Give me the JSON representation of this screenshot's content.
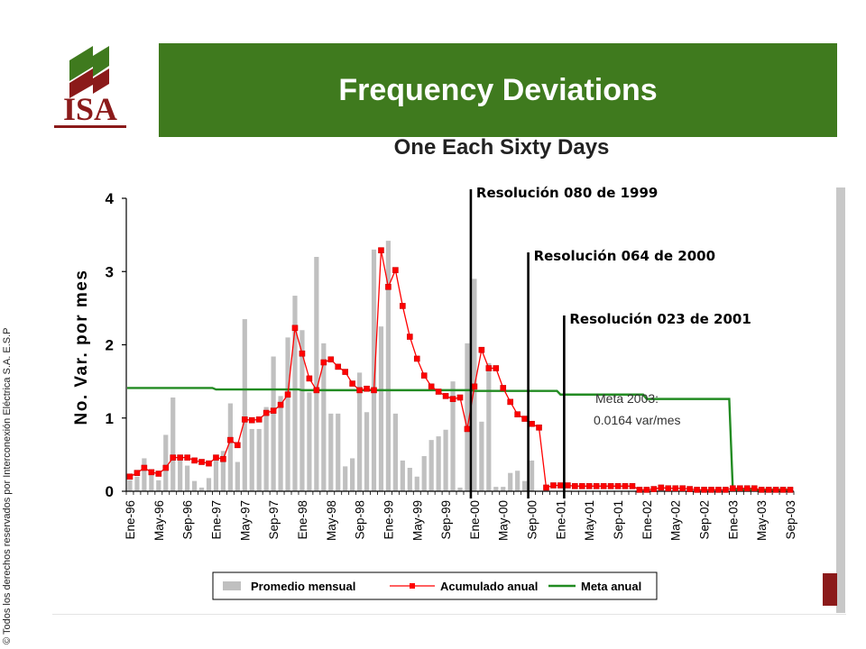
{
  "header": {
    "logo_text": "ISA",
    "title": "Frequency Deviations",
    "subtitle": "One Each Sixty Days",
    "copyright": "© Todos los derechos reservados por Interconexión Eléctrica S.A. E.S.P",
    "colors": {
      "title_bar": "#3f7a1e",
      "logo_red": "#8b1a1a",
      "logo_green": "#3f7a1e"
    }
  },
  "chart_data": {
    "type": "bar",
    "categories": [
      "Ene-96",
      "Feb-96",
      "Mar-96",
      "Abr-96",
      "May-96",
      "Jun-96",
      "Jul-96",
      "Ago-96",
      "Sep-96",
      "Oct-96",
      "Nov-96",
      "Dic-96",
      "Ene-97",
      "Feb-97",
      "Mar-97",
      "Abr-97",
      "May-97",
      "Jun-97",
      "Jul-97",
      "Ago-97",
      "Sep-97",
      "Oct-97",
      "Nov-97",
      "Dic-97",
      "Ene-98",
      "Feb-98",
      "Mar-98",
      "Abr-98",
      "May-98",
      "Jun-98",
      "Jul-98",
      "Ago-98",
      "Sep-98",
      "Oct-98",
      "Nov-98",
      "Dic-98",
      "Ene-99",
      "Feb-99",
      "Mar-99",
      "Abr-99",
      "May-99",
      "Jun-99",
      "Jul-99",
      "Ago-99",
      "Sep-99",
      "Oct-99",
      "Nov-99",
      "Dic-99",
      "Ene-00",
      "Feb-00",
      "Mar-00",
      "Abr-00",
      "May-00",
      "Jun-00",
      "Jul-00",
      "Ago-00",
      "Sep-00",
      "Oct-00",
      "Nov-00",
      "Dic-00",
      "Ene-01",
      "Feb-01",
      "Mar-01",
      "Abr-01",
      "May-01",
      "Jun-01",
      "Jul-01",
      "Ago-01",
      "Sep-01",
      "Oct-01",
      "Nov-01",
      "Dic-01",
      "Ene-02",
      "Feb-02",
      "Mar-02",
      "Abr-02",
      "May-02",
      "Jun-02",
      "Jul-02",
      "Ago-02",
      "Sep-02",
      "Oct-02",
      "Nov-02",
      "Dic-02",
      "Ene-03",
      "Feb-03",
      "Mar-03",
      "Abr-03",
      "May-03",
      "Jun-03",
      "Jul-03",
      "Ago-03",
      "Sep-03"
    ],
    "tick_labels": [
      "Ene-96",
      "May-96",
      "Sep-96",
      "Ene-97",
      "May-97",
      "Sep-97",
      "Ene-98",
      "May-98",
      "Sep-98",
      "Ene-99",
      "May-99",
      "Sep-99",
      "Ene-00",
      "May-00",
      "Sep-00",
      "Ene-01",
      "May-01",
      "Sep-01",
      "Ene-02",
      "May-02",
      "Sep-02",
      "Ene-03",
      "May-03",
      "Sep-03"
    ],
    "series": [
      {
        "name": "Promedio mensual",
        "kind": "bar",
        "color": "#c0c0c0",
        "values": [
          0.15,
          0.2,
          0.45,
          0.22,
          0.15,
          0.77,
          1.28,
          0.5,
          0.35,
          0.14,
          0.05,
          0.18,
          0.42,
          0.55,
          1.2,
          0.4,
          2.35,
          0.85,
          0.85,
          1.15,
          1.84,
          1.3,
          2.1,
          2.67,
          2.2,
          1.35,
          3.2,
          2.02,
          1.06,
          1.06,
          0.34,
          0.45,
          1.62,
          1.08,
          3.3,
          2.25,
          3.42,
          1.06,
          0.42,
          0.32,
          0.2,
          0.48,
          0.7,
          0.75,
          0.84,
          1.5,
          0.05,
          2.02,
          2.9,
          0.95,
          1.75,
          0.06,
          0.06,
          0.25,
          0.28,
          0.14,
          0.42,
          0.0,
          0.02,
          0.0,
          0.0,
          0.0,
          0.0,
          0.0,
          0.0,
          0.0,
          0.0,
          0.0,
          0.0,
          0.0,
          0.0,
          0.0,
          0.0,
          0.0,
          0.0,
          0.0,
          0.0,
          0.0,
          0.0,
          0.0,
          0.0,
          0.0,
          0.0,
          0.0,
          0.0,
          0.0,
          0.0,
          0.0,
          0.0,
          0.0,
          0.0,
          0.0,
          0.0
        ]
      },
      {
        "name": "Acumulado anual",
        "kind": "line-marker",
        "color": "#ff0000",
        "values": [
          0.2,
          0.25,
          0.32,
          0.26,
          0.24,
          0.32,
          0.46,
          0.46,
          0.46,
          0.42,
          0.4,
          0.38,
          0.46,
          0.44,
          0.7,
          0.63,
          0.98,
          0.97,
          0.98,
          1.07,
          1.1,
          1.18,
          1.32,
          2.23,
          1.88,
          1.54,
          1.38,
          1.76,
          1.8,
          1.7,
          1.63,
          1.47,
          1.38,
          1.4,
          1.38,
          3.29,
          2.79,
          3.02,
          2.53,
          2.11,
          1.81,
          1.58,
          1.43,
          1.36,
          1.3,
          1.26,
          1.28,
          0.85,
          1.43,
          1.93,
          1.68,
          1.68,
          1.41,
          1.22,
          1.05,
          0.99,
          0.92,
          0.87,
          0.05,
          0.08,
          0.08,
          0.08,
          0.07,
          0.07,
          0.07,
          0.07,
          0.07,
          0.07,
          0.07,
          0.07,
          0.07,
          0.02,
          0.02,
          0.03,
          0.05,
          0.04,
          0.04,
          0.04,
          0.03,
          0.02,
          0.02,
          0.02,
          0.02,
          0.02,
          0.04,
          0.04,
          0.04,
          0.04,
          0.02,
          0.02,
          0.02,
          0.02,
          0.02
        ]
      },
      {
        "name": "Meta anual",
        "kind": "step",
        "color": "#228b22",
        "values": [
          1.41,
          1.41,
          1.41,
          1.41,
          1.41,
          1.41,
          1.41,
          1.41,
          1.41,
          1.41,
          1.41,
          1.41,
          1.39,
          1.39,
          1.39,
          1.39,
          1.39,
          1.39,
          1.39,
          1.39,
          1.39,
          1.39,
          1.39,
          1.39,
          1.38,
          1.38,
          1.38,
          1.38,
          1.38,
          1.38,
          1.38,
          1.38,
          1.38,
          1.38,
          1.38,
          1.38,
          1.38,
          1.38,
          1.38,
          1.38,
          1.38,
          1.38,
          1.38,
          1.38,
          1.38,
          1.38,
          1.38,
          1.38,
          1.37,
          1.37,
          1.37,
          1.37,
          1.37,
          1.37,
          1.37,
          1.37,
          1.37,
          1.37,
          1.37,
          1.37,
          1.32,
          1.32,
          1.32,
          1.32,
          1.32,
          1.32,
          1.32,
          1.32,
          1.32,
          1.32,
          1.32,
          1.32,
          1.26,
          1.26,
          1.26,
          1.26,
          1.26,
          1.26,
          1.26,
          1.26,
          1.26,
          1.26,
          1.26,
          1.26,
          0.02,
          0.02,
          0.02,
          0.02,
          0.02,
          0.02,
          0.02,
          0.02,
          0.02
        ]
      }
    ],
    "ylabel": "No. Var. por mes",
    "ylim": [
      0,
      4
    ],
    "yticks": [
      "0",
      "1",
      "2",
      "3",
      "4"
    ],
    "grid": false,
    "legend_position": "bottom",
    "annotations": [
      {
        "text": "Resolución 080 de 1999",
        "at": "Ene-00"
      },
      {
        "text": "Resolución 064 de 2000",
        "at": "Sep-00"
      },
      {
        "text": "Resolución 023 de 2001",
        "at": "Feb-01"
      }
    ],
    "meta_label": [
      "Meta 2003:",
      "0.0164 var/mes"
    ]
  }
}
